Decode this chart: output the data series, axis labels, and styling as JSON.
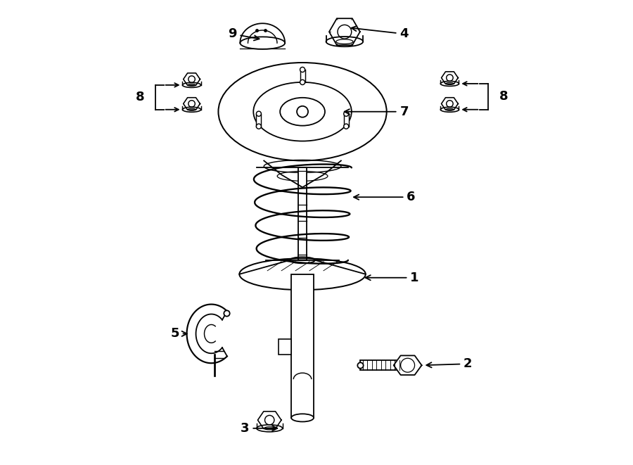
{
  "bg_color": "#ffffff",
  "line_color": "#000000",
  "line_width": 1.3,
  "fig_width": 9.0,
  "fig_height": 6.61,
  "dpi": 100
}
